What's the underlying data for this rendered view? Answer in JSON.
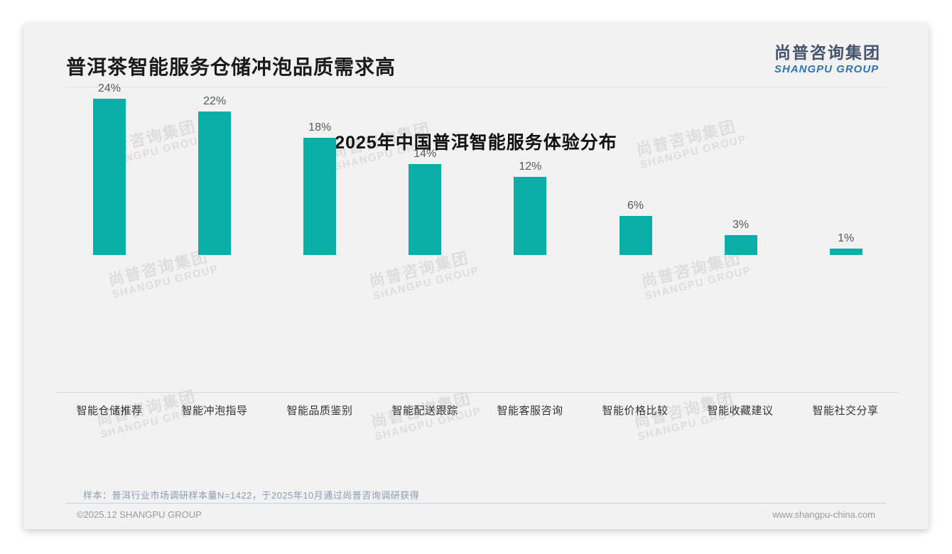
{
  "header": {
    "title": "普洱茶智能服务仓储冲泡品质需求高",
    "logo": {
      "cn": "尚普咨询集团",
      "en": "SHANGPU GROUP"
    }
  },
  "chart_data": {
    "type": "bar",
    "title": "2025年中国普洱智能服务体验分布",
    "categories": [
      "智能仓储推荐",
      "智能冲泡指导",
      "智能品质鉴别",
      "智能配送跟踪",
      "智能客服咨询",
      "智能价格比较",
      "智能收藏建议",
      "智能社交分享"
    ],
    "values": [
      24,
      22,
      18,
      14,
      12,
      6,
      3,
      1
    ],
    "value_labels": [
      "24%",
      "22%",
      "18%",
      "14%",
      "12%",
      "6%",
      "3%",
      "1%"
    ],
    "unit": "%",
    "xlabel": "",
    "ylabel": "",
    "ylim": [
      0,
      26
    ],
    "grid": false,
    "legend": false,
    "bar_color": "#0bafa8"
  },
  "watermark": {
    "cn": "尚普咨询集团",
    "en": "SHANGPU GROUP"
  },
  "footnote": "样本：普洱行业市场调研样本量N=1422，于2025年10月通过尚普咨询调研获得",
  "footer": {
    "left": "©2025.12 SHANGPU GROUP",
    "right": "www.shangpu-china.com"
  },
  "colors": {
    "accent": "#0bafa8",
    "card_background": "#f2f2f2",
    "title_text": "#1a1a1a",
    "value_label_text": "#595959",
    "category_label_text": "#333333",
    "logo_cn": "#44546a",
    "logo_en": "#2e75b6",
    "footnote_text": "#8d9cad",
    "footer_text": "#9a9a9a"
  }
}
